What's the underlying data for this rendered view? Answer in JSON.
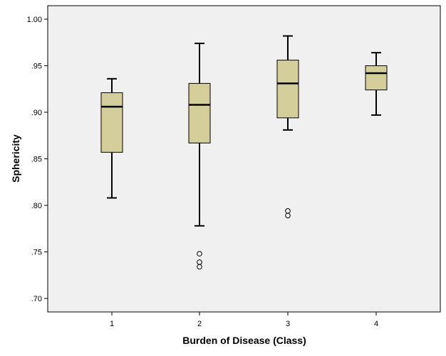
{
  "chart_data": {
    "type": "boxplot",
    "xlabel": "Burden of Disease (Class)",
    "ylabel": "Sphericity",
    "ylim": [
      0.685,
      1.025
    ],
    "yticks": [
      0.7,
      0.75,
      0.8,
      0.85,
      0.9,
      0.95,
      1.0
    ],
    "ytick_labels": [
      ".70",
      ".75",
      ".80",
      ".85",
      ".90",
      ".95",
      "1.00"
    ],
    "categories": [
      "1",
      "2",
      "3",
      "4"
    ],
    "box_color": "#d3ce9a",
    "background": "#f0f0f0",
    "grid": false,
    "boxes": [
      {
        "min": 0.808,
        "q1": 0.857,
        "median": 0.906,
        "q3": 0.921,
        "max": 0.936,
        "outliers": []
      },
      {
        "min": 0.778,
        "q1": 0.867,
        "median": 0.908,
        "q3": 0.931,
        "max": 0.974,
        "outliers": [
          0.748,
          0.739,
          0.734
        ]
      },
      {
        "min": 0.881,
        "q1": 0.894,
        "median": 0.931,
        "q3": 0.956,
        "max": 0.982,
        "outliers": [
          0.794,
          0.789
        ]
      },
      {
        "min": 0.897,
        "q1": 0.924,
        "median": 0.942,
        "q3": 0.95,
        "max": 0.964,
        "outliers": []
      }
    ]
  }
}
